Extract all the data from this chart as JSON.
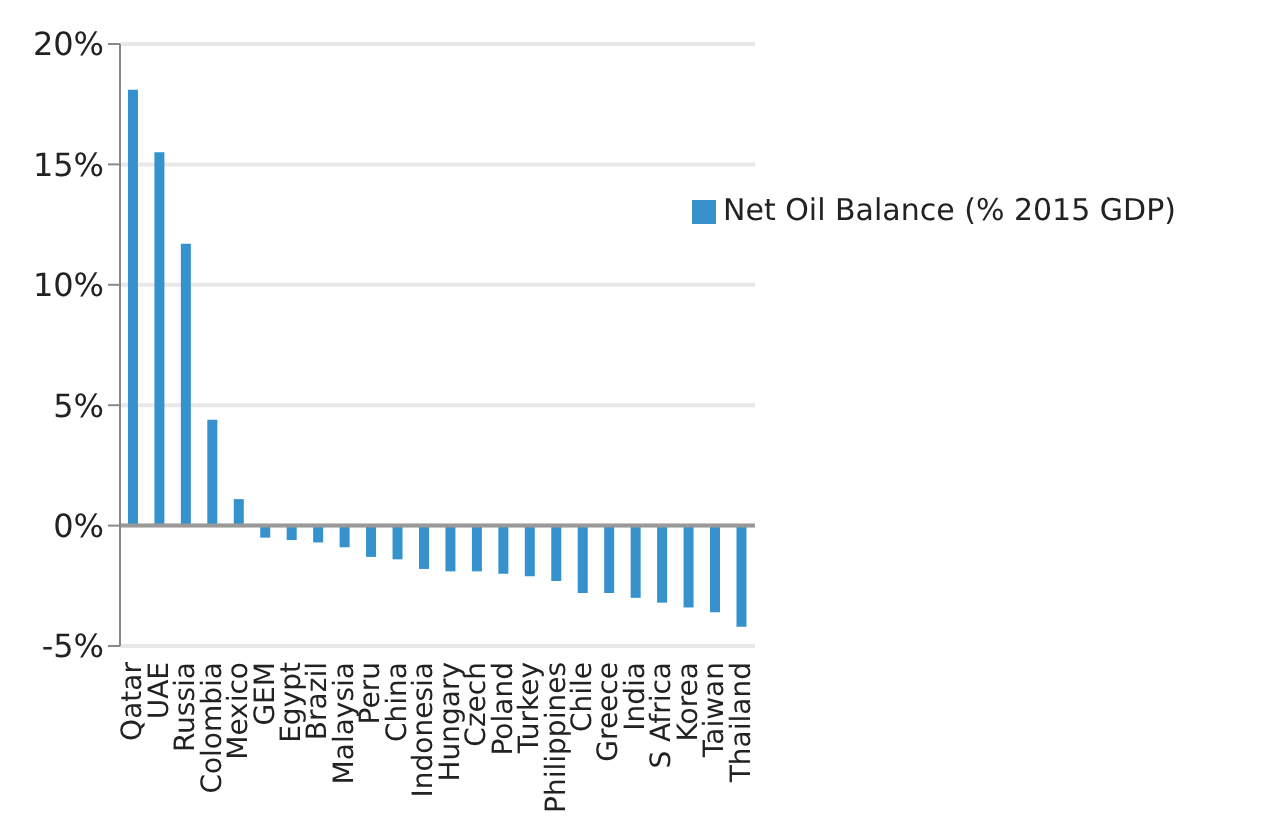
{
  "chart_data": {
    "type": "bar",
    "categories": [
      "Qatar",
      "UAE",
      "Russia",
      "Colombia",
      "Mexico",
      "GEM",
      "Egypt",
      "Brazil",
      "Malaysia",
      "Peru",
      "China",
      "Indonesia",
      "Hungary",
      "Czech",
      "Poland",
      "Turkey",
      "Philippines",
      "Chile",
      "Greece",
      "India",
      "S Africa",
      "Korea",
      "Taiwan",
      "Thailand"
    ],
    "series": [
      {
        "name": "Net Oil Balance (% 2015 GDP)",
        "color": "#3592cc",
        "values": [
          18.1,
          15.5,
          11.7,
          4.4,
          1.1,
          -0.5,
          -0.6,
          -0.7,
          -0.9,
          -1.3,
          -1.4,
          -1.8,
          -1.9,
          -1.9,
          -2.0,
          -2.1,
          -2.3,
          -2.8,
          -2.8,
          -3.0,
          -3.2,
          -3.4,
          -3.6,
          -4.2
        ]
      }
    ],
    "ylim": [
      -5,
      20
    ],
    "yticks": [
      {
        "value": -5,
        "label": "-5%"
      },
      {
        "value": 0,
        "label": "0%"
      },
      {
        "value": 5,
        "label": "5%"
      },
      {
        "value": 10,
        "label": "10%"
      },
      {
        "value": 15,
        "label": "15%"
      },
      {
        "value": 20,
        "label": "20%"
      }
    ],
    "grid": "y",
    "legend": "top right"
  }
}
